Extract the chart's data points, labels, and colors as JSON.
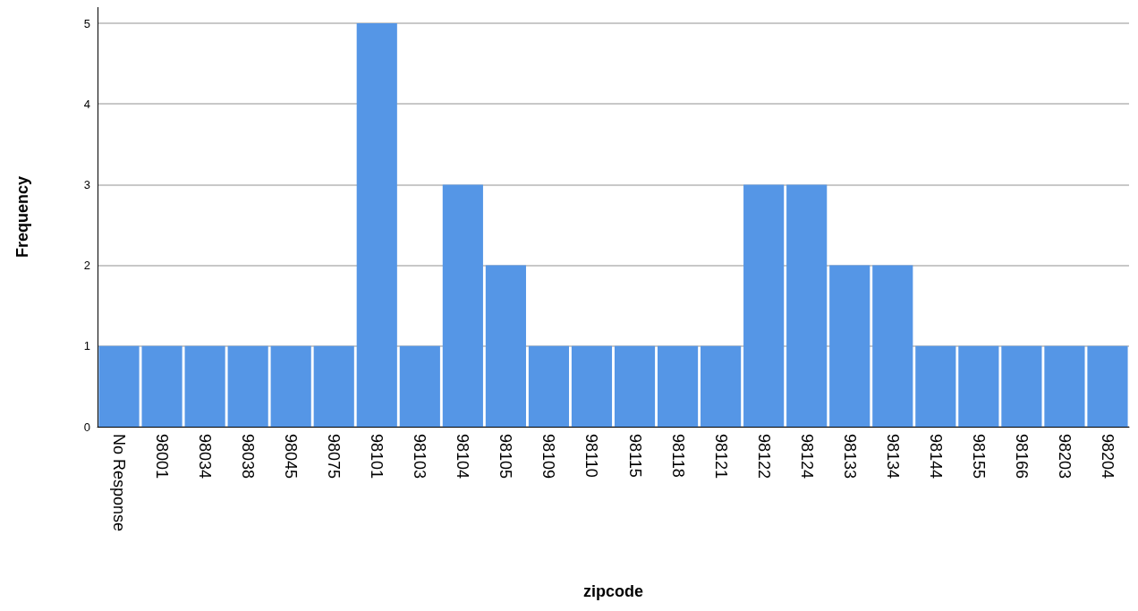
{
  "chart_data": {
    "type": "bar",
    "xlabel": "zipcode",
    "ylabel": "Frequency",
    "categories": [
      "No Response",
      "98001",
      "98034",
      "98038",
      "98045",
      "98075",
      "98101",
      "98103",
      "98104",
      "98105",
      "98109",
      "98110",
      "98115",
      "98118",
      "98121",
      "98122",
      "98124",
      "98133",
      "98134",
      "98144",
      "98155",
      "98166",
      "98203",
      "98204"
    ],
    "values": [
      1,
      1,
      1,
      1,
      1,
      1,
      5,
      1,
      3,
      2,
      1,
      1,
      1,
      1,
      1,
      3,
      3,
      2,
      2,
      1,
      1,
      1,
      1,
      1
    ],
    "color": "#5596e6",
    "ylim": [
      0,
      5.2
    ],
    "yticks": [
      0,
      1,
      2,
      3,
      4,
      5
    ],
    "grid": "y"
  }
}
